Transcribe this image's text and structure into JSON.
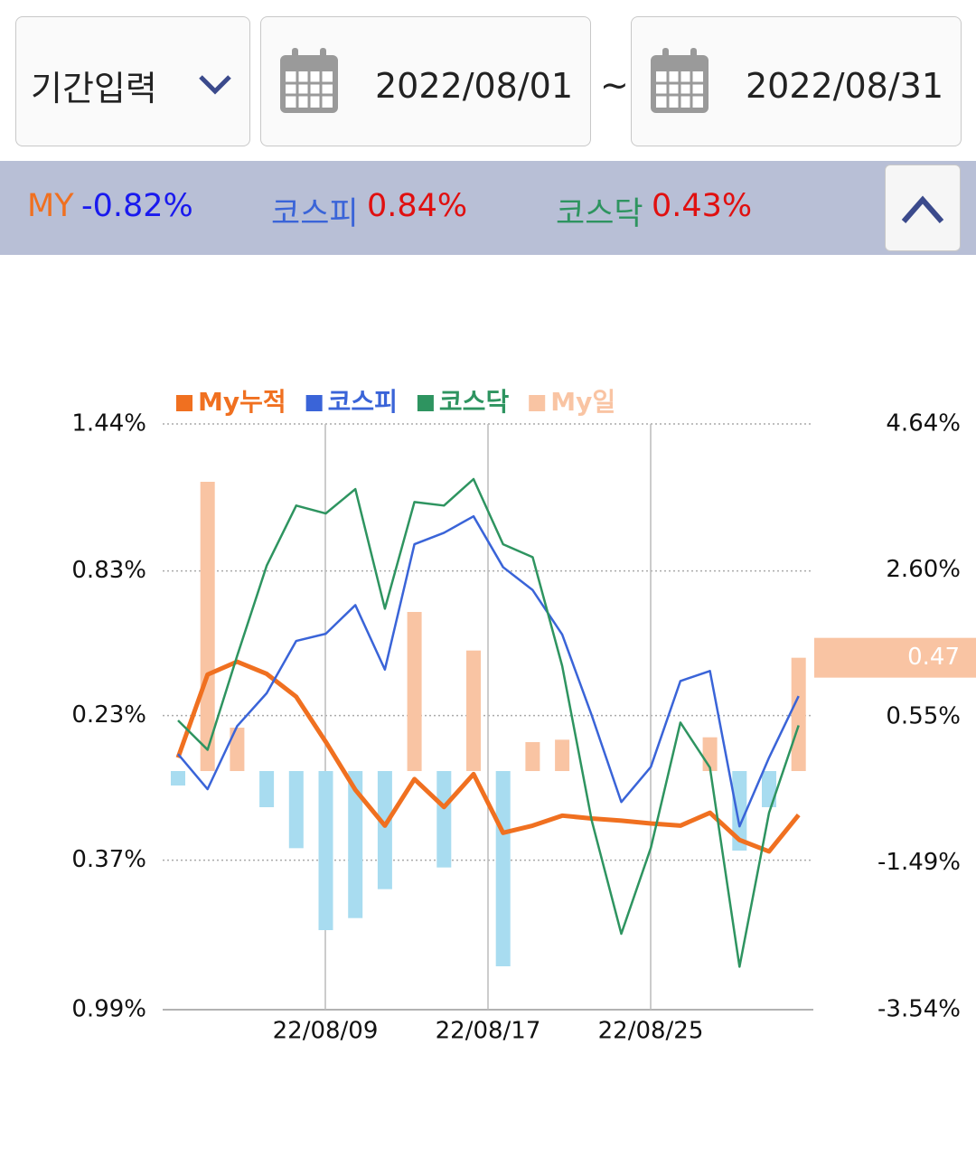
{
  "header": {
    "period_button": "기간입력",
    "start_date": "2022/08/01",
    "separator": "~",
    "end_date": "2022/08/31"
  },
  "summary": [
    {
      "name": "MY",
      "value": "-0.82%"
    },
    {
      "name": "코스피",
      "value": "0.84%"
    },
    {
      "name": "코스닥",
      "value": "0.43%"
    }
  ],
  "chart_data": {
    "type": "bar_line",
    "categories": [
      null,
      null,
      null,
      null,
      null,
      null,
      null,
      null,
      null,
      null,
      null,
      null,
      null,
      null,
      null,
      null,
      null,
      null,
      null,
      null,
      null,
      null
    ],
    "x_labels": [
      "22/08/09",
      "22/08/17",
      "22/08/25"
    ],
    "ylim": [
      -0.99,
      1.44
    ],
    "yticks": [
      {
        "value": 1.44,
        "label": "1.44%"
      },
      {
        "value": 0.83,
        "label": "0.83%"
      },
      {
        "value": 0.23,
        "label": "0.23%"
      },
      {
        "value": -0.37,
        "label": "0.37%"
      },
      {
        "value": -0.99,
        "label": "0.99%"
      }
    ],
    "y2lim": [
      -3.54,
      4.64
    ],
    "y2ticks": [
      {
        "value": 4.64,
        "label": "4.64%"
      },
      {
        "value": 2.6,
        "label": "2.60%"
      },
      {
        "value": 0.55,
        "label": "0.55%"
      },
      {
        "value": -1.49,
        "label": "-1.49%"
      },
      {
        "value": -3.54,
        "label": "-3.54%"
      }
    ],
    "grid": true,
    "series": [
      {
        "name": "My누적",
        "type": "line",
        "axis": "y2",
        "color": "#f07020",
        "width": 5,
        "values": [
          -0.02,
          1.14,
          1.32,
          1.15,
          0.83,
          0.2,
          -0.47,
          -0.97,
          -0.32,
          -0.71,
          -0.25,
          -1.07,
          -0.97,
          -0.83,
          -0.87,
          -0.9,
          -0.94,
          -0.97,
          -0.79,
          -1.17,
          -1.33,
          -0.82
        ]
      },
      {
        "name": "코스피",
        "type": "line",
        "axis": "y2",
        "color": "#3a64d8",
        "width": 2.5,
        "values": [
          0.03,
          -0.46,
          0.42,
          0.88,
          1.61,
          1.71,
          2.11,
          1.21,
          2.96,
          3.12,
          3.35,
          2.64,
          2.32,
          1.7,
          0.57,
          -0.64,
          -0.15,
          1.05,
          1.19,
          -0.98,
          -0.02,
          0.84
        ]
      },
      {
        "name": "코스닥",
        "type": "line",
        "axis": "y2",
        "color": "#2e9460",
        "width": 2.5,
        "values": [
          0.5,
          0.09,
          1.4,
          2.66,
          3.5,
          3.39,
          3.73,
          2.06,
          3.55,
          3.5,
          3.87,
          2.96,
          2.78,
          1.26,
          -0.9,
          -2.48,
          -1.28,
          0.47,
          -0.16,
          -2.94,
          -0.79,
          0.43
        ]
      },
      {
        "name": "My일",
        "type": "bar",
        "axis": "y",
        "color": "#f9c4a3",
        "negative_color": "#a8dcf0",
        "values": [
          -0.06,
          1.2,
          0.18,
          -0.15,
          -0.32,
          -0.66,
          -0.61,
          -0.49,
          0.66,
          -0.4,
          0.5,
          -0.81,
          0.12,
          0.13,
          0,
          0,
          0,
          0,
          0.14,
          -0.33,
          -0.15,
          0.47
        ]
      }
    ]
  }
}
